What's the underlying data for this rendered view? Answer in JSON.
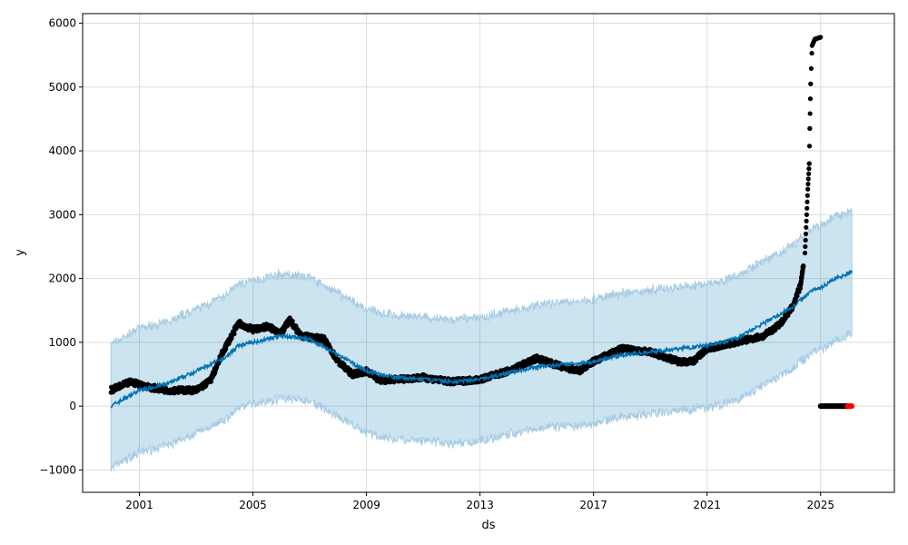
{
  "chart_data": {
    "type": "line",
    "title": "",
    "xlabel": "ds",
    "ylabel": "y",
    "xlim": [
      1999.0,
      2027.6
    ],
    "ylim": [
      -1350,
      6150
    ],
    "xticks": [
      2001,
      2005,
      2009,
      2013,
      2017,
      2021,
      2025
    ],
    "xtick_labels": [
      "2001",
      "2005",
      "2009",
      "2013",
      "2017",
      "2021",
      "2025"
    ],
    "yticks": [
      -1000,
      0,
      1000,
      2000,
      3000,
      4000,
      5000,
      6000
    ],
    "ytick_labels": [
      "−1000",
      "0",
      "1000",
      "2000",
      "3000",
      "4000",
      "5000",
      "6000"
    ],
    "grid": true,
    "colors": {
      "forecast": "#0072b2",
      "band": "#a6cbe3",
      "actual": "#000000",
      "future": "#ff0000"
    },
    "forecast": {
      "name": "yhat",
      "x": [
        2000.0,
        2001,
        2002,
        2003,
        2004,
        2004.5,
        2005,
        2006,
        2007,
        2008,
        2009,
        2010,
        2011,
        2012,
        2013,
        2014,
        2015,
        2016,
        2017,
        2018,
        2019,
        2020,
        2021,
        2022,
        2023,
        2024,
        2024.8,
        2025,
        2025.5,
        2026.1
      ],
      "y": [
        0,
        250,
        350,
        550,
        750,
        950,
        1000,
        1100,
        1050,
        800,
        550,
        450,
        420,
        380,
        420,
        520,
        620,
        650,
        700,
        800,
        850,
        900,
        950,
        1050,
        1300,
        1550,
        1850,
        1850,
        2000,
        2100
      ],
      "band_halfwidth": 970
    },
    "actual": {
      "name": "y",
      "x": [
        2000.0,
        2000.7,
        2001.3,
        2002,
        2003,
        2003.5,
        2004,
        2004.5,
        2005,
        2005.5,
        2006,
        2006.3,
        2006.7,
        2007.5,
        2008,
        2008.5,
        2009,
        2009.5,
        2010,
        2011,
        2012,
        2013,
        2014,
        2015,
        2016,
        2016.5,
        2017,
        2018,
        2019,
        2020,
        2020.5,
        2021,
        2022,
        2023,
        2023.6,
        2024,
        2024.3,
        2024.45,
        2024.55,
        2024.6,
        2024.62,
        2024.65,
        2024.7,
        2024.8,
        2025.0
      ],
      "y": [
        250,
        380,
        300,
        250,
        250,
        400,
        900,
        1300,
        1200,
        1250,
        1150,
        1350,
        1100,
        1050,
        700,
        500,
        550,
        400,
        420,
        450,
        380,
        420,
        550,
        750,
        600,
        550,
        700,
        900,
        850,
        700,
        700,
        900,
        1000,
        1100,
        1300,
        1550,
        1900,
        2400,
        3400,
        3800,
        4350,
        5050,
        5650,
        5750,
        5780
      ]
    },
    "future_points": {
      "x_start": 2025.0,
      "x_end": 2026.1,
      "y": 0
    }
  }
}
